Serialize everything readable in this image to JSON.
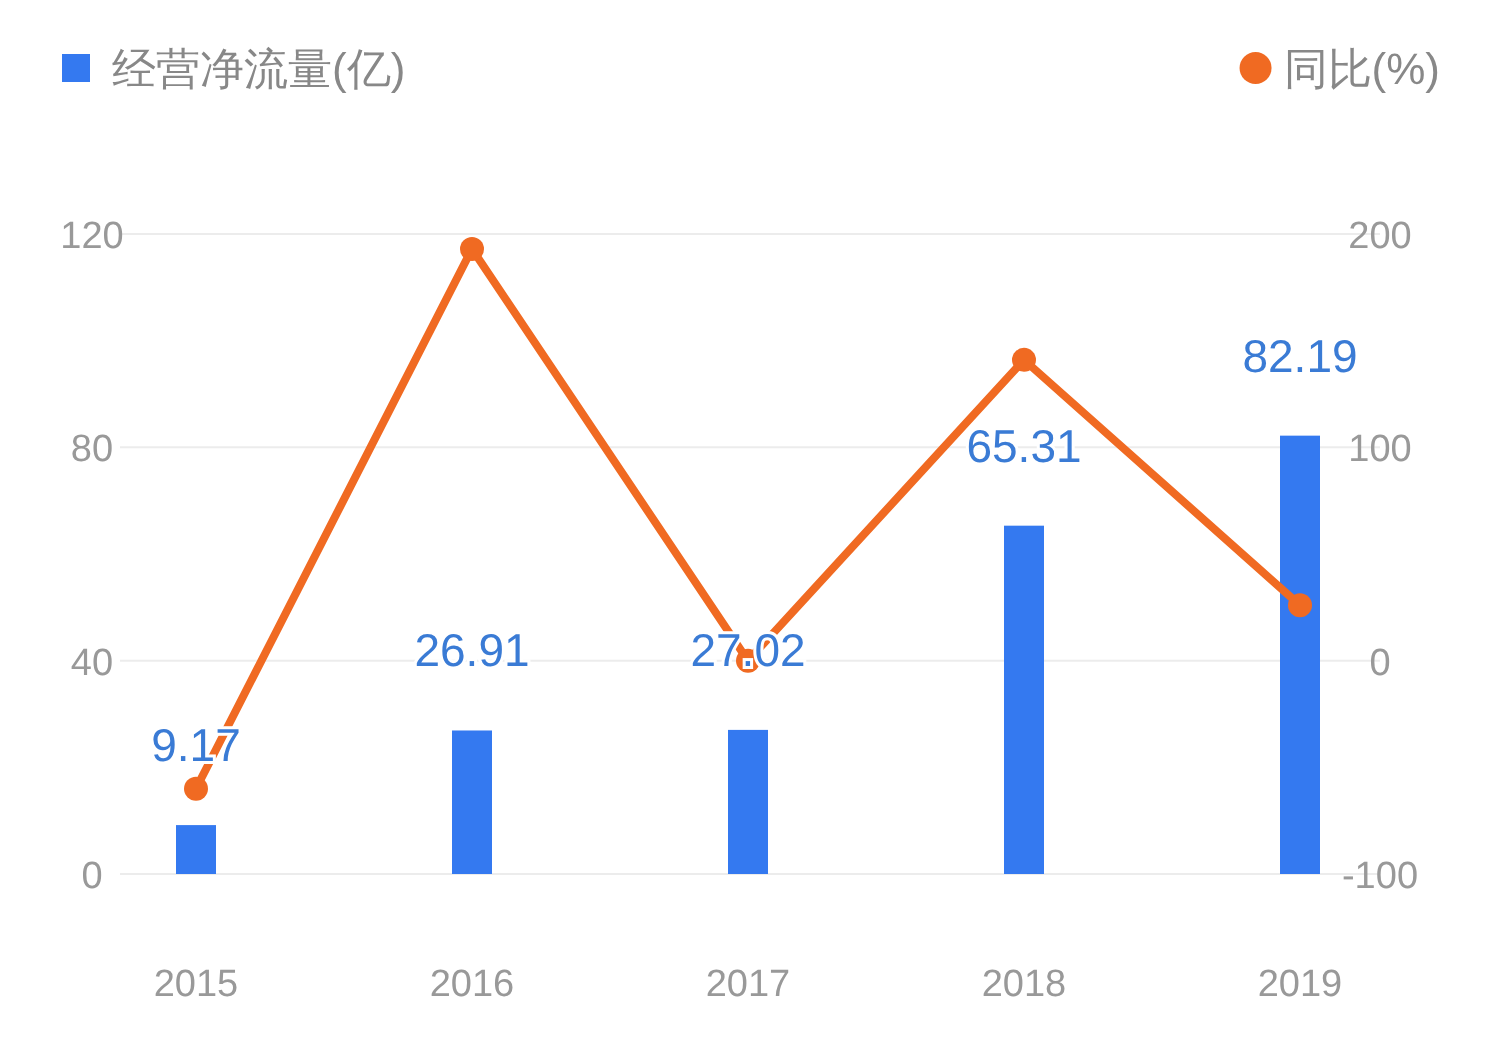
{
  "chart_data": {
    "type": "bar",
    "categories": [
      "2015",
      "2016",
      "2017",
      "2018",
      "2019"
    ],
    "series": [
      {
        "name": "经营净流量(亿)",
        "color": "#3479f0",
        "values": [
          9.17,
          26.91,
          27.02,
          65.31,
          82.19
        ],
        "value_labels": [
          "9.17",
          "26.91",
          "27.02",
          "65.31",
          "82.19"
        ]
      },
      {
        "name": "同比(%)",
        "type": "line",
        "axis": "y2",
        "color": "#f06a22",
        "marker": "circle",
        "values": [
          -60,
          193,
          0,
          141,
          26
        ]
      }
    ],
    "ylim": [
      0,
      120
    ],
    "yticks": [
      0,
      40,
      80,
      120
    ],
    "y2lim": [
      -100,
      200
    ],
    "y2ticks": [
      -100,
      0,
      100,
      200
    ],
    "grid": "y",
    "legend": "top"
  }
}
